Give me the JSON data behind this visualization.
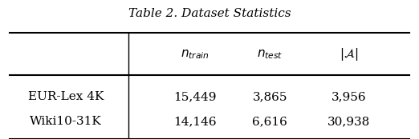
{
  "title": "Table 2. Dataset Statistics",
  "col_headers": [
    "$n_{train}$",
    "$n_{test}$",
    "$|\\mathcal{A}|$"
  ],
  "row_labels": [
    "EUR-Lex 4K",
    "Wiki10-31K"
  ],
  "data": [
    [
      "15,449",
      "3,865",
      "3,956"
    ],
    [
      "14,146",
      "6,616",
      "30,938"
    ]
  ],
  "bg_color": "white",
  "text_color": "black",
  "title_fontsize": 11,
  "header_fontsize": 11,
  "data_fontsize": 11,
  "label_fontsize": 11
}
